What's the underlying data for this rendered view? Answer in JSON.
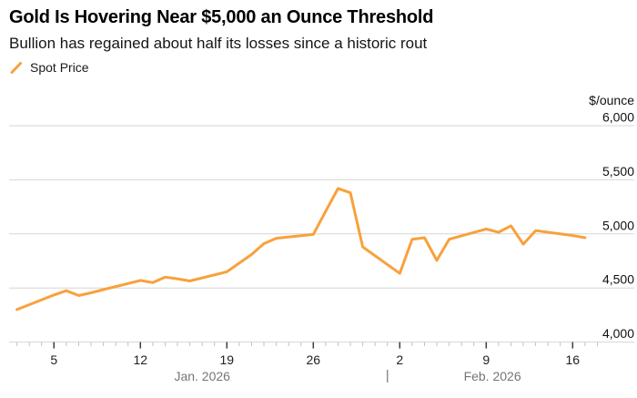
{
  "chart_data": {
    "type": "line",
    "title": "Gold Is Hovering Near $5,000 an Ounce Threshold",
    "subtitle": "Bullion has regained about half its losses since a historic rout",
    "legend_position": "top-left",
    "grid": "horizontal",
    "y_axis": {
      "unit": "$/ounce",
      "range": [
        4000,
        6000
      ],
      "ticks": [
        {
          "value": 6000,
          "label": "6,000"
        },
        {
          "value": 5500,
          "label": "5,500"
        },
        {
          "value": 5000,
          "label": "5,000"
        },
        {
          "value": 4500,
          "label": "4,500"
        },
        {
          "value": 4000,
          "label": "4,000"
        }
      ]
    },
    "x_axis": {
      "ticks": [
        {
          "day": 3,
          "label": "5",
          "date": "Jan 5"
        },
        {
          "day": 10,
          "label": "12",
          "date": "Jan 12"
        },
        {
          "day": 17,
          "label": "19",
          "date": "Jan 19"
        },
        {
          "day": 24,
          "label": "26",
          "date": "Jan 26"
        },
        {
          "day": 31,
          "label": "2",
          "date": "Feb 2"
        },
        {
          "day": 38,
          "label": "9",
          "date": "Feb 9"
        },
        {
          "day": 45,
          "label": "16",
          "date": "Feb 16"
        }
      ],
      "months": [
        {
          "label": "Jan. 2026",
          "day_span": [
            0,
            30
          ]
        },
        {
          "label": "Feb. 2026",
          "day_span": [
            30,
            47
          ]
        }
      ],
      "month_boundary_day": 30,
      "minor_tick_day_range": [
        0,
        47
      ]
    },
    "series": [
      {
        "name": "Spot Price",
        "color": "#F8A13C",
        "points": [
          {
            "date": "Jan 2",
            "day": 0,
            "value": 4300
          },
          {
            "date": "Jan 5",
            "day": 3,
            "value": 4435
          },
          {
            "date": "Jan 6",
            "day": 4,
            "value": 4475
          },
          {
            "date": "Jan 7",
            "day": 5,
            "value": 4430
          },
          {
            "date": "Jan 8",
            "day": 6,
            "value": 4455
          },
          {
            "date": "Jan 9",
            "day": 7,
            "value": 4485
          },
          {
            "date": "Jan 12",
            "day": 10,
            "value": 4570
          },
          {
            "date": "Jan 13",
            "day": 11,
            "value": 4550
          },
          {
            "date": "Jan 14",
            "day": 12,
            "value": 4600
          },
          {
            "date": "Jan 15",
            "day": 13,
            "value": 4585
          },
          {
            "date": "Jan 16",
            "day": 14,
            "value": 4565
          },
          {
            "date": "Jan 19",
            "day": 17,
            "value": 4650
          },
          {
            "date": "Jan 20",
            "day": 18,
            "value": 4730
          },
          {
            "date": "Jan 21",
            "day": 19,
            "value": 4810
          },
          {
            "date": "Jan 22",
            "day": 20,
            "value": 4910
          },
          {
            "date": "Jan 23",
            "day": 21,
            "value": 4960
          },
          {
            "date": "Jan 26",
            "day": 24,
            "value": 4995
          },
          {
            "date": "Jan 27",
            "day": 25,
            "value": 5210
          },
          {
            "date": "Jan 28",
            "day": 26,
            "value": 5420
          },
          {
            "date": "Jan 29",
            "day": 27,
            "value": 5380
          },
          {
            "date": "Jan 30",
            "day": 28,
            "value": 4880
          },
          {
            "date": "Feb 2",
            "day": 31,
            "value": 4635
          },
          {
            "date": "Feb 3",
            "day": 32,
            "value": 4950
          },
          {
            "date": "Feb 4",
            "day": 33,
            "value": 4965
          },
          {
            "date": "Feb 5",
            "day": 34,
            "value": 4755
          },
          {
            "date": "Feb 6",
            "day": 35,
            "value": 4950
          },
          {
            "date": "Feb 9",
            "day": 38,
            "value": 5045
          },
          {
            "date": "Feb 10",
            "day": 39,
            "value": 5015
          },
          {
            "date": "Feb 11",
            "day": 40,
            "value": 5075
          },
          {
            "date": "Feb 12",
            "day": 41,
            "value": 4905
          },
          {
            "date": "Feb 13",
            "day": 42,
            "value": 5030
          },
          {
            "date": "Feb 16",
            "day": 45,
            "value": 4985
          },
          {
            "date": "Feb 17",
            "day": 46,
            "value": 4965
          }
        ]
      }
    ],
    "colors": {
      "line": "#F8A13C",
      "gridline": "#d6d6d6",
      "minor_tick": "#c2c2c2",
      "major_tick": "#3d3d3d",
      "month_text": "#757575",
      "text": "#111111",
      "background": "#ffffff"
    }
  }
}
